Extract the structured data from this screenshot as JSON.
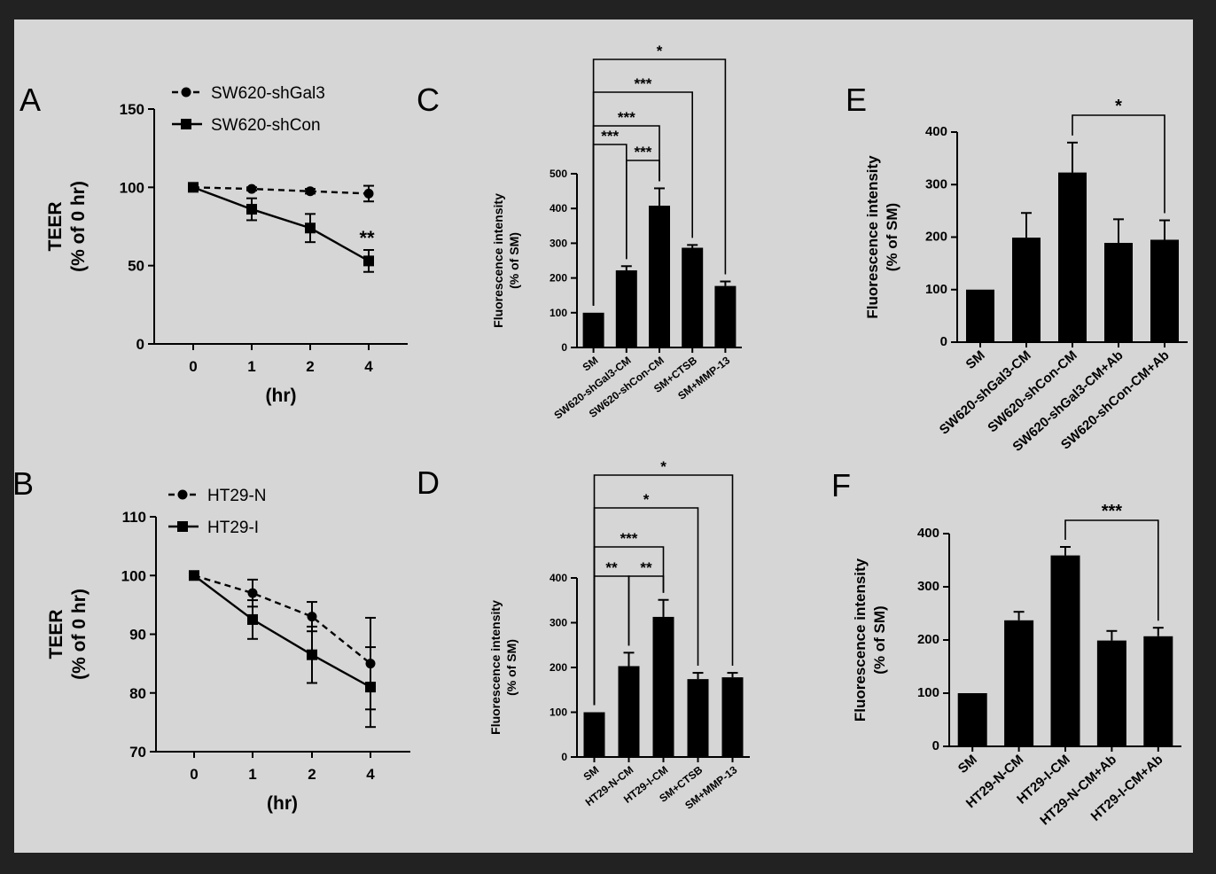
{
  "chart_data": [
    {
      "panel": "A",
      "type": "line",
      "x": [
        0,
        1,
        2,
        4
      ],
      "xlabel": "(hr)",
      "ylabel": [
        "TEER",
        "(% of 0 hr)"
      ],
      "ylim": [
        0,
        150
      ],
      "yticks": [
        0,
        50,
        100,
        150
      ],
      "series": [
        {
          "name": "SW620-shGal3",
          "style": "dashed",
          "marker": "circle",
          "values": [
            100,
            99,
            97.5,
            96
          ],
          "errors": [
            0,
            1,
            1.5,
            5
          ]
        },
        {
          "name": "SW620-shCon",
          "style": "solid",
          "marker": "square",
          "values": [
            100,
            86,
            74,
            53
          ],
          "errors": [
            0,
            7,
            9,
            7
          ]
        }
      ],
      "annotations": [
        {
          "x": 4,
          "text": "**"
        }
      ]
    },
    {
      "panel": "B",
      "type": "line",
      "x": [
        0,
        1,
        2,
        4
      ],
      "xlabel": "(hr)",
      "ylabel": [
        "TEER",
        "(% of 0 hr)"
      ],
      "ylim": [
        70,
        110
      ],
      "yticks": [
        70,
        80,
        90,
        100,
        110
      ],
      "series": [
        {
          "name": "HT29-N",
          "style": "dashed",
          "marker": "circle",
          "values": [
            100,
            97,
            93,
            85
          ],
          "errors": [
            0,
            2.3,
            2.5,
            7.8
          ]
        },
        {
          "name": "HT29-I",
          "style": "solid",
          "marker": "square",
          "values": [
            100,
            92.5,
            86.5,
            81
          ],
          "errors": [
            0,
            3.3,
            4.8,
            6.8
          ]
        }
      ]
    },
    {
      "panel": "C",
      "type": "bar",
      "categories": [
        "SM",
        "SW620-shGal3-CM",
        "SW620-shCon-CM",
        "SM+CTSB",
        "SM+MMP-13"
      ],
      "values": [
        100,
        222,
        408,
        287,
        177
      ],
      "errors": [
        0,
        12,
        50,
        8,
        13
      ],
      "ylabel": [
        "Fluorescence intensity",
        "(% of SM)"
      ],
      "ylim": [
        0,
        500
      ],
      "yticks": [
        0,
        100,
        200,
        300,
        400,
        500
      ],
      "significance": [
        {
          "from": "SM",
          "to": "SW620-shGal3-CM",
          "label": "***"
        },
        {
          "from": "SW620-shGal3-CM",
          "to": "SW620-shCon-CM",
          "label": "***"
        },
        {
          "from": "SM",
          "to": "SW620-shCon-CM",
          "label": "***"
        },
        {
          "from": "SM",
          "to": "SM+CTSB",
          "label": "***"
        },
        {
          "from": "SM",
          "to": "SM+MMP-13",
          "label": "*"
        }
      ]
    },
    {
      "panel": "D",
      "type": "bar",
      "categories": [
        "SM",
        "HT29-N-CM",
        "HT29-I-CM",
        "SM+CTSB",
        "SM+MMP-13"
      ],
      "values": [
        100,
        203,
        313,
        174,
        178
      ],
      "errors": [
        0,
        30,
        38,
        14,
        10
      ],
      "ylabel": [
        "Fluorescence intensity",
        "(% of SM)"
      ],
      "ylim": [
        0,
        400
      ],
      "yticks": [
        0,
        100,
        200,
        300,
        400
      ],
      "significance": [
        {
          "from": "SM",
          "to": "HT29-N-CM",
          "label": "**"
        },
        {
          "from": "HT29-N-CM",
          "to": "HT29-I-CM",
          "label": "**"
        },
        {
          "from": "SM",
          "to": "HT29-I-CM",
          "label": "***"
        },
        {
          "from": "SM",
          "to": "SM+CTSB",
          "label": "*"
        },
        {
          "from": "SM",
          "to": "SM+MMP-13",
          "label": "*"
        }
      ]
    },
    {
      "panel": "E",
      "type": "bar",
      "categories": [
        "SM",
        "SW620-shGal3-CM",
        "SW620-shCon-CM",
        "SW620-shGal3-CM+Ab",
        "SW620-shCon-CM+Ab"
      ],
      "values": [
        100,
        199,
        323,
        189,
        195
      ],
      "errors": [
        0,
        47,
        57,
        45,
        37
      ],
      "ylabel": [
        "Fluorescence intensity",
        "(% of SM)"
      ],
      "ylim": [
        0,
        400
      ],
      "yticks": [
        0,
        100,
        200,
        300,
        400
      ],
      "significance": [
        {
          "from": "SW620-shCon-CM",
          "to": "SW620-shCon-CM+Ab",
          "label": "*"
        }
      ]
    },
    {
      "panel": "F",
      "type": "bar",
      "categories": [
        "SM",
        "HT29-N-CM",
        "HT29-I-CM",
        "HT29-N-CM+Ab",
        "HT29-I-CM+Ab"
      ],
      "values": [
        100,
        237,
        359,
        199,
        207
      ],
      "errors": [
        0,
        16,
        16,
        18,
        16
      ],
      "ylabel": [
        "Fluorescence intensity",
        "(% of SM)"
      ],
      "ylim": [
        0,
        400
      ],
      "yticks": [
        0,
        100,
        200,
        300,
        400
      ],
      "significance": [
        {
          "from": "HT29-I-CM",
          "to": "HT29-I-CM+Ab",
          "label": "***"
        }
      ]
    }
  ]
}
